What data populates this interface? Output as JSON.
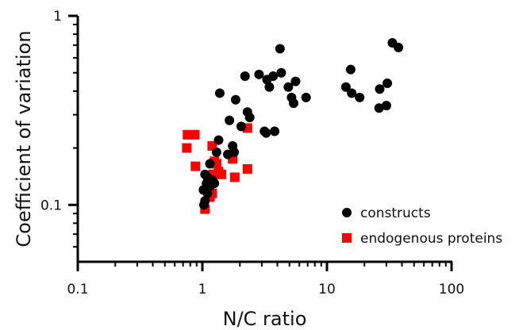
{
  "chart_data": {
    "type": "scatter",
    "title": "",
    "xlabel": "N/C ratio",
    "ylabel": "Coefficient of variation",
    "xscale": "log",
    "yscale": "log",
    "xlim": [
      0.1,
      100
    ],
    "ylim": [
      0.05,
      1
    ],
    "x_ticks": [
      {
        "value": 0.1,
        "label": "0.1"
      },
      {
        "value": 1,
        "label": "1"
      },
      {
        "value": 10,
        "label": "10"
      },
      {
        "value": 100,
        "label": "100"
      }
    ],
    "y_ticks": [
      {
        "value": 0.1,
        "label": "0.1"
      },
      {
        "value": 1,
        "label": "1"
      }
    ],
    "grid": false,
    "legend_position": "bottom-right",
    "series": [
      {
        "name": "constructs",
        "marker": "circle",
        "color": "#000000",
        "points": [
          {
            "x": 1.38,
            "y": 0.39
          },
          {
            "x": 1.85,
            "y": 0.36
          },
          {
            "x": 2.2,
            "y": 0.48
          },
          {
            "x": 2.85,
            "y": 0.49
          },
          {
            "x": 3.3,
            "y": 0.46
          },
          {
            "x": 3.7,
            "y": 0.48
          },
          {
            "x": 4.2,
            "y": 0.67
          },
          {
            "x": 4.3,
            "y": 0.5
          },
          {
            "x": 4.9,
            "y": 0.42
          },
          {
            "x": 5.6,
            "y": 0.45
          },
          {
            "x": 3.45,
            "y": 0.42
          },
          {
            "x": 5.2,
            "y": 0.37
          },
          {
            "x": 5.4,
            "y": 0.345
          },
          {
            "x": 6.8,
            "y": 0.37
          },
          {
            "x": 2.3,
            "y": 0.31
          },
          {
            "x": 2.4,
            "y": 0.29
          },
          {
            "x": 1.65,
            "y": 0.28
          },
          {
            "x": 2.05,
            "y": 0.26
          },
          {
            "x": 3.15,
            "y": 0.245
          },
          {
            "x": 3.25,
            "y": 0.24
          },
          {
            "x": 3.8,
            "y": 0.245
          },
          {
            "x": 1.35,
            "y": 0.22
          },
          {
            "x": 1.75,
            "y": 0.205
          },
          {
            "x": 1.8,
            "y": 0.19
          },
          {
            "x": 1.6,
            "y": 0.185
          },
          {
            "x": 1.3,
            "y": 0.19
          },
          {
            "x": 1.15,
            "y": 0.165
          },
          {
            "x": 1.05,
            "y": 0.145
          },
          {
            "x": 1.1,
            "y": 0.14
          },
          {
            "x": 1.2,
            "y": 0.135
          },
          {
            "x": 1.25,
            "y": 0.13
          },
          {
            "x": 1.08,
            "y": 0.13
          },
          {
            "x": 1.15,
            "y": 0.125
          },
          {
            "x": 1.02,
            "y": 0.12
          },
          {
            "x": 1.1,
            "y": 0.115
          },
          {
            "x": 1.05,
            "y": 0.105
          },
          {
            "x": 1.03,
            "y": 0.1
          },
          {
            "x": 15.5,
            "y": 0.52
          },
          {
            "x": 14.2,
            "y": 0.42
          },
          {
            "x": 15.8,
            "y": 0.39
          },
          {
            "x": 18.3,
            "y": 0.37
          },
          {
            "x": 26.5,
            "y": 0.41
          },
          {
            "x": 30.5,
            "y": 0.44
          },
          {
            "x": 33.5,
            "y": 0.72
          },
          {
            "x": 37.5,
            "y": 0.68
          },
          {
            "x": 26.2,
            "y": 0.325
          },
          {
            "x": 30.0,
            "y": 0.335
          }
        ]
      },
      {
        "name": "endogenous proteins",
        "marker": "square",
        "color": "#ff0000",
        "points": [
          {
            "x": 0.76,
            "y": 0.235
          },
          {
            "x": 0.87,
            "y": 0.235
          },
          {
            "x": 0.75,
            "y": 0.2
          },
          {
            "x": 0.88,
            "y": 0.16
          },
          {
            "x": 1.2,
            "y": 0.205
          },
          {
            "x": 1.25,
            "y": 0.17
          },
          {
            "x": 1.3,
            "y": 0.165
          },
          {
            "x": 1.22,
            "y": 0.145
          },
          {
            "x": 1.35,
            "y": 0.15
          },
          {
            "x": 1.42,
            "y": 0.145
          },
          {
            "x": 1.75,
            "y": 0.175
          },
          {
            "x": 1.82,
            "y": 0.14
          },
          {
            "x": 2.3,
            "y": 0.255
          },
          {
            "x": 2.3,
            "y": 0.155
          },
          {
            "x": 1.12,
            "y": 0.13
          },
          {
            "x": 1.2,
            "y": 0.115
          },
          {
            "x": 1.15,
            "y": 0.11
          },
          {
            "x": 1.05,
            "y": 0.095
          }
        ]
      }
    ]
  }
}
